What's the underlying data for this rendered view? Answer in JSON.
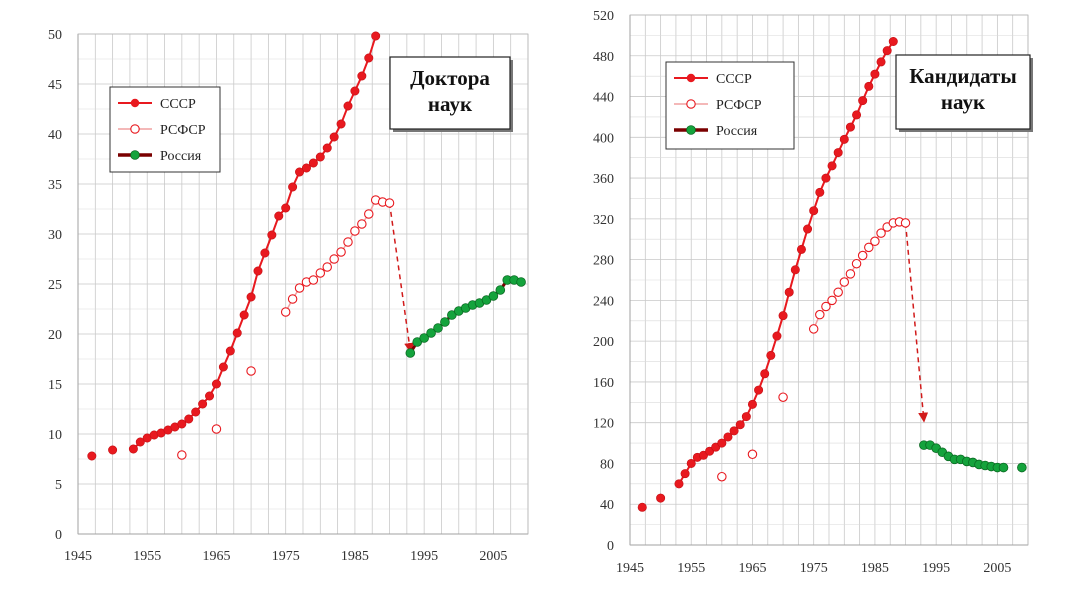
{
  "chart_data": [
    {
      "type": "scatter",
      "title": "Доктора наук",
      "xticks": [
        "1945",
        "1955",
        "1965",
        "1975",
        "1985",
        "1995",
        "2005"
      ],
      "yticks": [
        "0",
        "5",
        "10",
        "15",
        "20",
        "25",
        "30",
        "35",
        "40",
        "45",
        "50"
      ],
      "xlim": [
        1945,
        2010
      ],
      "ylim": [
        0,
        50
      ],
      "grid": true,
      "legend_position": "top-left",
      "series": [
        {
          "name": "СССР",
          "color": "#e8191f",
          "marker": "filled-circle",
          "segments": [
            {
              "x": [
                1947
              ],
              "y": [
                7.8
              ]
            },
            {
              "x": [
                1950
              ],
              "y": [
                8.4
              ]
            },
            {
              "x": [
                1953,
                1954,
                1955,
                1956,
                1957,
                1958,
                1959,
                1960,
                1961,
                1962,
                1963,
                1964,
                1965,
                1966,
                1967,
                1968,
                1969,
                1970,
                1971,
                1972,
                1973,
                1974,
                1975,
                1976,
                1977,
                1978,
                1979,
                1980,
                1981,
                1982,
                1983,
                1984,
                1985,
                1986,
                1987,
                1988
              ],
              "y": [
                8.5,
                9.2,
                9.6,
                9.9,
                10.1,
                10.4,
                10.7,
                11.0,
                11.5,
                12.2,
                13.0,
                13.8,
                15.0,
                16.7,
                18.3,
                20.1,
                21.9,
                23.7,
                26.3,
                28.1,
                29.9,
                31.8,
                32.6,
                34.7,
                36.2,
                36.6,
                37.1,
                37.7,
                38.6,
                39.7,
                41.0,
                42.8,
                44.3,
                45.8,
                47.6,
                49.8
              ]
            }
          ]
        },
        {
          "name": "РСФСР",
          "color": "#e8191f",
          "marker": "open-circle",
          "segments": [
            {
              "x": [
                1960
              ],
              "y": [
                7.9
              ]
            },
            {
              "x": [
                1965
              ],
              "y": [
                10.5
              ]
            },
            {
              "x": [
                1970
              ],
              "y": [
                16.3
              ]
            },
            {
              "x": [
                1975,
                1976,
                1977,
                1978,
                1979,
                1980,
                1981,
                1982,
                1983,
                1984,
                1985,
                1986,
                1987,
                1988,
                1989,
                1990
              ],
              "y": [
                22.2,
                23.5,
                24.6,
                25.2,
                25.4,
                26.1,
                26.7,
                27.5,
                28.2,
                29.2,
                30.3,
                31.0,
                32.0,
                33.4,
                33.2,
                33.1
              ]
            }
          ]
        },
        {
          "name": "Россия",
          "color": "#14a33c",
          "line_color": "#7a0000",
          "marker": "green-circle",
          "segments": [
            {
              "x": [
                1993,
                1994,
                1995,
                1996,
                1997,
                1998,
                1999,
                2000,
                2001,
                2002,
                2003,
                2004,
                2005,
                2006,
                2007,
                2008,
                2009
              ],
              "y": [
                18.1,
                19.2,
                19.6,
                20.1,
                20.6,
                21.2,
                21.9,
                22.3,
                22.6,
                22.9,
                23.1,
                23.4,
                23.8,
                24.4,
                25.4,
                25.4,
                25.2
              ]
            }
          ]
        }
      ],
      "annotation": {
        "type": "dashed-arrow",
        "from": [
          1990,
          33.1
        ],
        "to": [
          1993,
          18.3
        ]
      }
    },
    {
      "type": "scatter",
      "title": "Кандидаты наук",
      "xticks": [
        "1945",
        "1955",
        "1965",
        "1975",
        "1985",
        "1995",
        "2005"
      ],
      "yticks": [
        "0",
        "40",
        "80",
        "120",
        "160",
        "200",
        "240",
        "280",
        "320",
        "360",
        "400",
        "440",
        "480",
        "520"
      ],
      "xlim": [
        1945,
        2010
      ],
      "ylim": [
        0,
        520
      ],
      "grid": true,
      "legend_position": "top-left",
      "series": [
        {
          "name": "СССР",
          "color": "#e8191f",
          "marker": "filled-circle",
          "segments": [
            {
              "x": [
                1947
              ],
              "y": [
                37
              ]
            },
            {
              "x": [
                1950
              ],
              "y": [
                46
              ]
            },
            {
              "x": [
                1953,
                1954,
                1955,
                1956,
                1957,
                1958,
                1959,
                1960,
                1961,
                1962,
                1963,
                1964,
                1965,
                1966,
                1967,
                1968,
                1969,
                1970,
                1971,
                1972,
                1973,
                1974,
                1975,
                1976,
                1977,
                1978,
                1979,
                1980,
                1981,
                1982,
                1983,
                1984,
                1985,
                1986,
                1987,
                1988
              ],
              "y": [
                60,
                70,
                80,
                86,
                88,
                92,
                96,
                100,
                106,
                112,
                118,
                126,
                138,
                152,
                168,
                186,
                205,
                225,
                248,
                270,
                290,
                310,
                328,
                346,
                360,
                372,
                385,
                398,
                410,
                422,
                436,
                450,
                462,
                474,
                485,
                494
              ]
            }
          ]
        },
        {
          "name": "РСФСР",
          "color": "#e8191f",
          "marker": "open-circle",
          "segments": [
            {
              "x": [
                1960
              ],
              "y": [
                67
              ]
            },
            {
              "x": [
                1965
              ],
              "y": [
                89
              ]
            },
            {
              "x": [
                1970
              ],
              "y": [
                145
              ]
            },
            {
              "x": [
                1975,
                1976,
                1977,
                1978,
                1979,
                1980,
                1981,
                1982,
                1983,
                1984,
                1985,
                1986,
                1987,
                1988,
                1989,
                1990
              ],
              "y": [
                212,
                226,
                234,
                240,
                248,
                258,
                266,
                276,
                284,
                292,
                298,
                306,
                312,
                316,
                317,
                316
              ]
            }
          ]
        },
        {
          "name": "Россия",
          "color": "#14a33c",
          "line_color": "#7a0000",
          "marker": "green-circle",
          "segments": [
            {
              "x": [
                1993,
                1994,
                1995,
                1996,
                1997,
                1998,
                1999,
                2000,
                2001,
                2002,
                2003,
                2004,
                2005,
                2006
              ],
              "y": [
                98,
                98,
                95,
                91,
                87,
                84,
                84,
                82,
                81,
                79,
                78,
                77,
                76,
                76
              ]
            },
            {
              "x": [
                2009
              ],
              "y": [
                76
              ]
            }
          ]
        }
      ],
      "annotation": {
        "type": "dashed-arrow",
        "from": [
          1990,
          316
        ],
        "to": [
          1993,
          122
        ]
      }
    }
  ]
}
